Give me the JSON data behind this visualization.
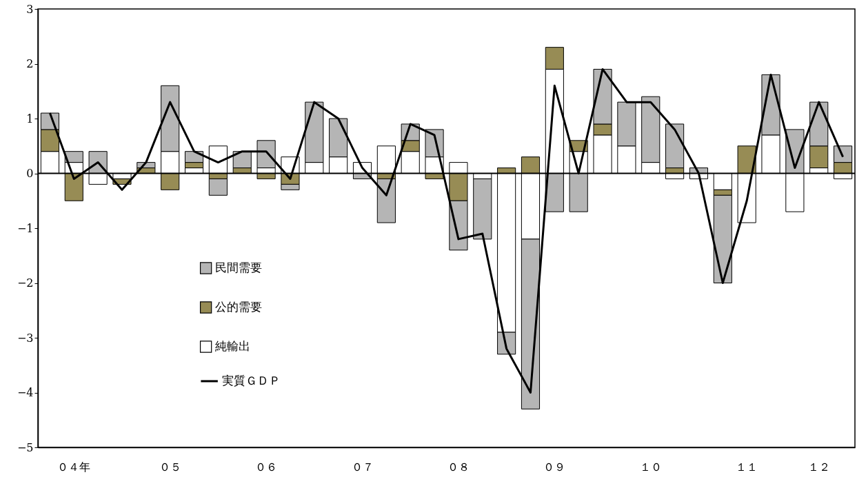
{
  "chart_data": {
    "type": "bar",
    "stacked": true,
    "categories": [
      null,
      "０４年",
      null,
      null,
      null,
      "０５",
      null,
      null,
      null,
      "０６",
      null,
      null,
      null,
      "０７",
      null,
      null,
      null,
      "０８",
      null,
      null,
      null,
      "０９",
      null,
      null,
      null,
      "１０",
      null,
      null,
      null,
      "１１",
      null,
      null,
      "１２",
      null
    ],
    "series": [
      {
        "name": "純輸出",
        "color": "#ffffff",
        "values": [
          0.4,
          0.2,
          -0.2,
          -0.1,
          null,
          0.4,
          0.1,
          0.5,
          null,
          0.1,
          0.3,
          0.2,
          0.3,
          0.2,
          0.5,
          0.4,
          0.3,
          0.2,
          -0.1,
          -2.9,
          -1.2,
          1.9,
          0.4,
          0.7,
          0.5,
          0.2,
          -0.1,
          -0.1,
          -0.3,
          -0.9,
          0.7,
          -0.7,
          0.1,
          -0.1
        ]
      },
      {
        "name": "公的需要",
        "color": "#978c55",
        "values": [
          0.4,
          -0.5,
          null,
          -0.1,
          0.1,
          -0.3,
          0.1,
          -0.1,
          0.1,
          -0.1,
          -0.2,
          null,
          null,
          null,
          -0.1,
          0.2,
          -0.1,
          -0.5,
          null,
          0.1,
          0.3,
          0.4,
          0.2,
          0.2,
          null,
          null,
          0.1,
          null,
          -0.1,
          0.5,
          null,
          null,
          0.4,
          0.2
        ]
      },
      {
        "name": "民間需要",
        "color": "#b5b5b5",
        "values": [
          0.3,
          0.2,
          0.4,
          null,
          0.1,
          1.2,
          0.2,
          -0.3,
          0.3,
          0.5,
          -0.1,
          1.1,
          0.7,
          -0.1,
          -0.8,
          0.3,
          0.5,
          -0.9,
          -1.1,
          -0.4,
          -3.1,
          -0.7,
          -0.7,
          1.0,
          0.8,
          1.2,
          0.8,
          0.1,
          -1.6,
          null,
          1.1,
          0.8,
          0.8,
          0.3
        ]
      },
      {
        "name": "実質ＧＤＰ",
        "type": "line",
        "color": "#000000",
        "values": [
          1.1,
          -0.1,
          0.2,
          -0.3,
          0.2,
          1.3,
          0.4,
          0.2,
          0.4,
          0.4,
          -0.1,
          1.3,
          1.0,
          0.1,
          -0.4,
          0.9,
          0.7,
          -1.2,
          -1.1,
          -3.2,
          -4.0,
          1.6,
          0,
          1.9,
          1.3,
          1.3,
          0.8,
          0,
          -2.0,
          -0.5,
          1.8,
          0.1,
          1.3,
          0.3
        ]
      }
    ],
    "ylim": [
      -5,
      3
    ],
    "yticks": [
      -5,
      -4,
      -3,
      -2,
      -1,
      0,
      1,
      2,
      3
    ],
    "ref_lines": [
      {
        "axis": "y",
        "value": 0
      }
    ],
    "legend": "left"
  }
}
